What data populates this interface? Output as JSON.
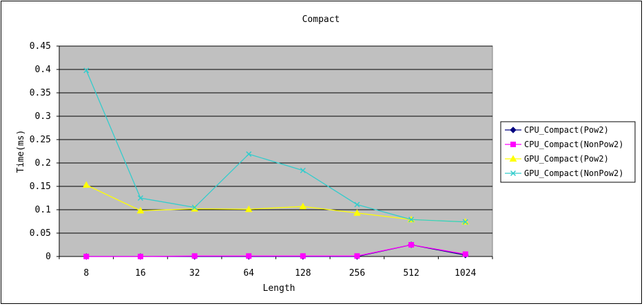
{
  "chart_data": {
    "type": "line",
    "title": "Compact",
    "xlabel": "Length",
    "ylabel": "Time(ms)",
    "categories": [
      "8",
      "16",
      "32",
      "64",
      "128",
      "256",
      "512",
      "1024"
    ],
    "ylim": [
      0,
      0.45
    ],
    "yticks": [
      "0",
      "0.05",
      "0.1",
      "0.15",
      "0.2",
      "0.25",
      "0.3",
      "0.35",
      "0.4",
      "0.45"
    ],
    "grid": true,
    "legend_position": "right",
    "plot_background": "#c0c0c0",
    "series": [
      {
        "name": "CPU_Compact(Pow2)",
        "color": "#000080",
        "marker": "diamond",
        "values": [
          0,
          0,
          0,
          0,
          0,
          0,
          0.025,
          0.003
        ]
      },
      {
        "name": "CPU_Compact(NonPow2)",
        "color": "#ff00ff",
        "marker": "square",
        "values": [
          0,
          0,
          0.001,
          0.001,
          0.001,
          0.001,
          0.025,
          0.005
        ]
      },
      {
        "name": "GPU_Compact(Pow2)",
        "color": "#ffff00",
        "marker": "triangle",
        "values": [
          0.153,
          0.098,
          0.102,
          0.101,
          0.107,
          0.093,
          0.079,
          0.074
        ]
      },
      {
        "name": "GPU_Compact(NonPow2)",
        "color": "#33cccc",
        "marker": "x",
        "values": [
          0.398,
          0.125,
          0.105,
          0.219,
          0.184,
          0.111,
          0.079,
          0.074
        ]
      }
    ]
  }
}
